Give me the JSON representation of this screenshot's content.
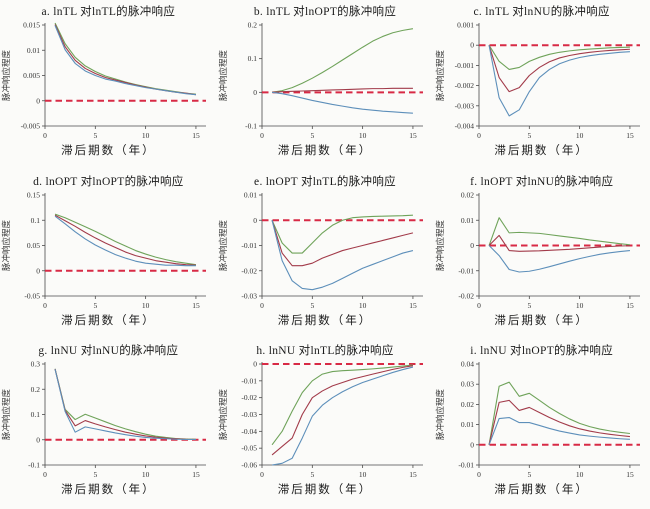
{
  "figure": {
    "background": "#fbfbf9",
    "xlabel": "滞后期数（年）",
    "ylabel": "脉冲响应程度"
  },
  "colors": {
    "green": "#6fa35a",
    "red": "#a23b4a",
    "blue": "#5d8fba",
    "zero_dash": "#d82a45",
    "axis": "#4a4a4a",
    "tick_text": "#333333"
  },
  "chart_data": [
    {
      "id": "a",
      "type": "line",
      "title": "a. lnTL 对lnTL的脉冲响应",
      "xlabel": "滞后期数（年）",
      "ylabel": "脉冲响应程度",
      "x": [
        1,
        2,
        3,
        4,
        5,
        6,
        7,
        8,
        9,
        10,
        11,
        12,
        13,
        14,
        15
      ],
      "xlim": [
        0,
        16
      ],
      "ylim": [
        -0.005,
        0.015
      ],
      "xticks": [
        0,
        5,
        10,
        15
      ],
      "xtick_labels": [
        "0",
        "5",
        "10",
        "15"
      ],
      "yticks": [
        0.015,
        0.01,
        0.005,
        0,
        -0.005
      ],
      "ytick_labels": [
        "0.015",
        "0.01",
        "0.005",
        "0",
        "-0.005"
      ],
      "zero_line": true,
      "series": [
        {
          "name": "green-line",
          "color": "green",
          "values": [
            0.0154,
            0.0113,
            0.0086,
            0.0069,
            0.0058,
            0.0049,
            0.0043,
            0.0037,
            0.0032,
            0.0028,
            0.0024,
            0.0021,
            0.0018,
            0.0015,
            0.0013
          ]
        },
        {
          "name": "red-line",
          "color": "red",
          "values": [
            0.0151,
            0.0107,
            0.008,
            0.0064,
            0.0054,
            0.0046,
            0.0041,
            0.0036,
            0.0031,
            0.0027,
            0.0023,
            0.002,
            0.0017,
            0.0015,
            0.0012
          ]
        },
        {
          "name": "blue-line",
          "color": "blue",
          "values": [
            0.0149,
            0.0101,
            0.0074,
            0.0059,
            0.005,
            0.0043,
            0.0039,
            0.0034,
            0.003,
            0.0026,
            0.0023,
            0.002,
            0.0017,
            0.0014,
            0.0012
          ]
        }
      ]
    },
    {
      "id": "b",
      "type": "line",
      "title": "b. lnTL 对lnOPT的脉冲响应",
      "xlabel": "滞后期数（年）",
      "ylabel": "脉冲响应程度",
      "x": [
        1,
        2,
        3,
        4,
        5,
        6,
        7,
        8,
        9,
        10,
        11,
        12,
        13,
        14,
        15
      ],
      "xlim": [
        0,
        16
      ],
      "ylim": [
        -0.1,
        0.2
      ],
      "xticks": [
        0,
        5,
        10,
        15
      ],
      "xtick_labels": [
        "0",
        "5",
        "10",
        "15"
      ],
      "yticks": [
        0.2,
        0.1,
        0,
        -0.1
      ],
      "ytick_labels": [
        "0.2",
        "0.1",
        "0",
        "-0.1"
      ],
      "zero_line": true,
      "series": [
        {
          "name": "green-line",
          "color": "green",
          "values": [
            0.0,
            0.005,
            0.014,
            0.027,
            0.042,
            0.059,
            0.077,
            0.096,
            0.115,
            0.134,
            0.152,
            0.166,
            0.177,
            0.184,
            0.189
          ]
        },
        {
          "name": "red-line",
          "color": "red",
          "values": [
            0.0,
            0.002,
            0.003,
            0.004,
            0.005,
            0.006,
            0.007,
            0.008,
            0.009,
            0.01,
            0.011,
            0.011,
            0.012,
            0.012,
            0.012
          ]
        },
        {
          "name": "blue-line",
          "color": "blue",
          "values": [
            0.0,
            -0.004,
            -0.01,
            -0.017,
            -0.024,
            -0.03,
            -0.036,
            -0.041,
            -0.046,
            -0.05,
            -0.053,
            -0.056,
            -0.058,
            -0.06,
            -0.062
          ]
        }
      ]
    },
    {
      "id": "c",
      "type": "line",
      "title": "c. lnTL 对lnNU的脉冲响应",
      "xlabel": "滞后期数（年）",
      "ylabel": "脉冲响应程度",
      "x": [
        1,
        2,
        3,
        4,
        5,
        6,
        7,
        8,
        9,
        10,
        11,
        12,
        13,
        14,
        15
      ],
      "xlim": [
        0,
        16
      ],
      "ylim": [
        -0.004,
        0.001
      ],
      "xticks": [
        0,
        5,
        10,
        15
      ],
      "xtick_labels": [
        "0",
        "5",
        "10",
        "15"
      ],
      "yticks": [
        0.001,
        0,
        -0.001,
        -0.002,
        -0.003,
        -0.004
      ],
      "ytick_labels": [
        "0.001",
        "0",
        "-0.001",
        "-0.002",
        "-0.003",
        "-0.004"
      ],
      "zero_line": true,
      "series": [
        {
          "name": "green-line",
          "color": "green",
          "values": [
            0,
            -0.0008,
            -0.0012,
            -0.0011,
            -0.0008,
            -0.0006,
            -0.00045,
            -0.00035,
            -0.00028,
            -0.00023,
            -0.00019,
            -0.00016,
            -0.00013,
            -0.00011,
            -0.0001
          ]
        },
        {
          "name": "red-line",
          "color": "red",
          "values": [
            0,
            -0.0016,
            -0.0023,
            -0.0021,
            -0.0015,
            -0.0011,
            -0.00082,
            -0.00063,
            -0.00051,
            -0.00042,
            -0.00035,
            -0.0003,
            -0.00026,
            -0.00023,
            -0.0002
          ]
        },
        {
          "name": "blue-line",
          "color": "blue",
          "values": [
            0,
            -0.0026,
            -0.0035,
            -0.0032,
            -0.0023,
            -0.0016,
            -0.0012,
            -0.00092,
            -0.00074,
            -0.00061,
            -0.00052,
            -0.00045,
            -0.0004,
            -0.00035,
            -0.00032
          ]
        }
      ]
    },
    {
      "id": "d",
      "type": "line",
      "title": "d. lnOPT 对lnOPT的脉冲响应",
      "xlabel": "滞后期数（年）",
      "ylabel": "脉冲响应程度",
      "x": [
        1,
        2,
        3,
        4,
        5,
        6,
        7,
        8,
        9,
        10,
        11,
        12,
        13,
        14,
        15
      ],
      "xlim": [
        0,
        16
      ],
      "ylim": [
        -0.05,
        0.15
      ],
      "xticks": [
        0,
        5,
        10,
        15
      ],
      "xtick_labels": [
        "0",
        "5",
        "10",
        "15"
      ],
      "yticks": [
        0.15,
        0.1,
        0.05,
        0,
        -0.05
      ],
      "ytick_labels": [
        "0.15",
        "0.1",
        "0.05",
        "0",
        "-0.05"
      ],
      "zero_line": true,
      "series": [
        {
          "name": "green-line",
          "color": "green",
          "values": [
            0.112,
            0.105,
            0.096,
            0.087,
            0.078,
            0.068,
            0.058,
            0.049,
            0.04,
            0.033,
            0.027,
            0.022,
            0.018,
            0.015,
            0.012
          ]
        },
        {
          "name": "red-line",
          "color": "red",
          "values": [
            0.11,
            0.099,
            0.088,
            0.076,
            0.065,
            0.055,
            0.046,
            0.037,
            0.03,
            0.025,
            0.02,
            0.017,
            0.014,
            0.012,
            0.011
          ]
        },
        {
          "name": "blue-line",
          "color": "blue",
          "values": [
            0.108,
            0.093,
            0.077,
            0.063,
            0.051,
            0.041,
            0.032,
            0.025,
            0.019,
            0.015,
            0.013,
            0.011,
            0.011,
            0.01,
            0.01
          ]
        }
      ]
    },
    {
      "id": "e",
      "type": "line",
      "title": "e. lnOPT 对lnTL的脉冲响应",
      "xlabel": "滞后期数（年）",
      "ylabel": "脉冲响应程度",
      "x": [
        1,
        2,
        3,
        4,
        5,
        6,
        7,
        8,
        9,
        10,
        11,
        12,
        13,
        14,
        15
      ],
      "xlim": [
        0,
        16
      ],
      "ylim": [
        -0.03,
        0.01
      ],
      "xticks": [
        0,
        5,
        10,
        15
      ],
      "xtick_labels": [
        "0",
        "5",
        "10",
        "15"
      ],
      "yticks": [
        0.01,
        0,
        -0.01,
        -0.02,
        -0.03
      ],
      "ytick_labels": [
        "0.01",
        "0",
        "-0.01",
        "-0.02",
        "-0.03"
      ],
      "zero_line": true,
      "series": [
        {
          "name": "green-line",
          "color": "green",
          "values": [
            0,
            -0.009,
            -0.013,
            -0.013,
            -0.009,
            -0.005,
            -0.002,
            0.0,
            0.001,
            0.0013,
            0.0015,
            0.0016,
            0.0017,
            0.0018,
            0.002
          ]
        },
        {
          "name": "red-line",
          "color": "red",
          "values": [
            0,
            -0.013,
            -0.018,
            -0.018,
            -0.017,
            -0.015,
            -0.0135,
            -0.012,
            -0.011,
            -0.01,
            -0.009,
            -0.008,
            -0.007,
            -0.006,
            -0.005
          ]
        },
        {
          "name": "blue-line",
          "color": "blue",
          "values": [
            0,
            -0.016,
            -0.024,
            -0.027,
            -0.0275,
            -0.0265,
            -0.025,
            -0.023,
            -0.021,
            -0.019,
            -0.0175,
            -0.016,
            -0.0145,
            -0.013,
            -0.012
          ]
        }
      ]
    },
    {
      "id": "f",
      "type": "line",
      "title": "f. lnOPT 对lnNU的脉冲响应",
      "xlabel": "滞后期数（年）",
      "ylabel": "脉冲响应程度",
      "x": [
        1,
        2,
        3,
        4,
        5,
        6,
        7,
        8,
        9,
        10,
        11,
        12,
        13,
        14,
        15
      ],
      "xlim": [
        0,
        16
      ],
      "ylim": [
        -0.02,
        0.02
      ],
      "xticks": [
        0,
        5,
        10,
        15
      ],
      "xtick_labels": [
        "0",
        "5",
        "10",
        "15"
      ],
      "yticks": [
        0.02,
        0.01,
        0,
        -0.01,
        -0.02
      ],
      "ytick_labels": [
        "0.02",
        "0.01",
        "0",
        "-0.01",
        "-0.02"
      ],
      "zero_line": true,
      "series": [
        {
          "name": "green-line",
          "color": "green",
          "values": [
            0,
            0.011,
            0.005,
            0.0052,
            0.005,
            0.0048,
            0.0043,
            0.0038,
            0.0033,
            0.0028,
            0.0022,
            0.0017,
            0.0012,
            0.0007,
            0.0003
          ]
        },
        {
          "name": "red-line",
          "color": "red",
          "values": [
            0,
            0.004,
            -0.002,
            -0.0023,
            -0.0022,
            -0.0021,
            -0.0019,
            -0.0017,
            -0.0015,
            -0.0012,
            -0.0009,
            -0.0006,
            -0.0004,
            -0.0002,
            -0.0001
          ]
        },
        {
          "name": "blue-line",
          "color": "blue",
          "values": [
            0,
            -0.004,
            -0.0095,
            -0.0105,
            -0.0102,
            -0.0094,
            -0.0084,
            -0.0073,
            -0.0062,
            -0.0052,
            -0.0043,
            -0.0035,
            -0.0029,
            -0.0024,
            -0.002
          ]
        }
      ]
    },
    {
      "id": "g",
      "type": "line",
      "title": "g. lnNU 对lnNU的脉冲响应",
      "xlabel": "滞后期数（年）",
      "ylabel": "脉冲响应程度",
      "x": [
        1,
        2,
        3,
        4,
        5,
        6,
        7,
        8,
        9,
        10,
        11,
        12,
        13,
        14,
        15
      ],
      "xlim": [
        0,
        16
      ],
      "ylim": [
        -0.1,
        0.3
      ],
      "xticks": [
        0,
        5,
        10,
        15
      ],
      "xtick_labels": [
        "0",
        "5",
        "10",
        "15"
      ],
      "yticks": [
        0.3,
        0.2,
        0.1,
        0,
        -0.1
      ],
      "ytick_labels": [
        "0.3",
        "0.2",
        "0.1",
        "0",
        "-0.1"
      ],
      "zero_line": true,
      "series": [
        {
          "name": "green-line",
          "color": "green",
          "values": [
            0.281,
            0.12,
            0.08,
            0.101,
            0.086,
            0.071,
            0.056,
            0.043,
            0.032,
            0.022,
            0.014,
            0.009,
            0.005,
            0.003,
            0.002
          ]
        },
        {
          "name": "red-line",
          "color": "red",
          "values": [
            0.28,
            0.116,
            0.055,
            0.076,
            0.063,
            0.051,
            0.04,
            0.03,
            0.022,
            0.015,
            0.01,
            0.006,
            0.004,
            0.002,
            0.001
          ]
        },
        {
          "name": "blue-line",
          "color": "blue",
          "values": [
            0.279,
            0.112,
            0.03,
            0.051,
            0.043,
            0.035,
            0.027,
            0.02,
            0.014,
            0.009,
            0.006,
            0.004,
            0.002,
            0.001,
            0.001
          ]
        }
      ]
    },
    {
      "id": "h",
      "type": "line",
      "title": "h. lnNU 对lnTL的脉冲响应",
      "xlabel": "滞后期数（年）",
      "ylabel": "脉冲响应程度",
      "x": [
        1,
        2,
        3,
        4,
        5,
        6,
        7,
        8,
        9,
        10,
        11,
        12,
        13,
        14,
        15
      ],
      "xlim": [
        0,
        16
      ],
      "ylim": [
        -0.06,
        0
      ],
      "xticks": [
        0,
        5,
        10,
        15
      ],
      "xtick_labels": [
        "0",
        "5",
        "10",
        "15"
      ],
      "yticks": [
        0,
        -0.01,
        -0.02,
        -0.03,
        -0.04,
        -0.05,
        -0.06
      ],
      "ytick_labels": [
        "0",
        "-0.01",
        "-0.02",
        "-0.03",
        "-0.04",
        "-0.05",
        "-0.06"
      ],
      "zero_line": true,
      "series": [
        {
          "name": "green-line",
          "color": "green",
          "values": [
            -0.048,
            -0.04,
            -0.028,
            -0.017,
            -0.01,
            -0.006,
            -0.0045,
            -0.004,
            -0.0037,
            -0.0033,
            -0.0029,
            -0.0024,
            -0.0018,
            -0.0012,
            -0.0006
          ]
        },
        {
          "name": "red-line",
          "color": "red",
          "values": [
            -0.054,
            -0.049,
            -0.044,
            -0.03,
            -0.02,
            -0.016,
            -0.013,
            -0.011,
            -0.009,
            -0.0075,
            -0.006,
            -0.0046,
            -0.0032,
            -0.002,
            -0.001
          ]
        },
        {
          "name": "blue-line",
          "color": "blue",
          "values": [
            -0.06,
            -0.059,
            -0.056,
            -0.044,
            -0.031,
            -0.0245,
            -0.02,
            -0.0165,
            -0.0135,
            -0.011,
            -0.009,
            -0.007,
            -0.005,
            -0.0033,
            -0.0018
          ]
        }
      ]
    },
    {
      "id": "i",
      "type": "line",
      "title": "i. lnNU 对lnOPT的脉冲响应",
      "xlabel": "滞后期数（年）",
      "ylabel": "脉冲响应程度",
      "x": [
        1,
        2,
        3,
        4,
        5,
        6,
        7,
        8,
        9,
        10,
        11,
        12,
        13,
        14,
        15
      ],
      "xlim": [
        0,
        16
      ],
      "ylim": [
        -0.01,
        0.04
      ],
      "xticks": [
        0,
        5,
        10,
        15
      ],
      "xtick_labels": [
        "0",
        "5",
        "10",
        "15"
      ],
      "yticks": [
        0.04,
        0.03,
        0.02,
        0.01,
        0,
        -0.01
      ],
      "ytick_labels": [
        "0.04",
        "0.03",
        "0.02",
        "0.01",
        "0",
        "-0.01"
      ],
      "zero_line": true,
      "series": [
        {
          "name": "green-line",
          "color": "green",
          "values": [
            0,
            0.029,
            0.031,
            0.024,
            0.0255,
            0.022,
            0.0185,
            0.0155,
            0.0128,
            0.0106,
            0.009,
            0.0078,
            0.0069,
            0.0062,
            0.0056
          ]
        },
        {
          "name": "red-line",
          "color": "red",
          "values": [
            0,
            0.021,
            0.022,
            0.017,
            0.0185,
            0.016,
            0.0135,
            0.0113,
            0.0094,
            0.0079,
            0.0068,
            0.0059,
            0.0052,
            0.0046,
            0.0041
          ]
        },
        {
          "name": "blue-line",
          "color": "blue",
          "values": [
            0,
            0.013,
            0.0135,
            0.011,
            0.011,
            0.0096,
            0.0081,
            0.0068,
            0.0058,
            0.0049,
            0.0043,
            0.0038,
            0.0034,
            0.003,
            0.0027
          ]
        }
      ]
    }
  ]
}
